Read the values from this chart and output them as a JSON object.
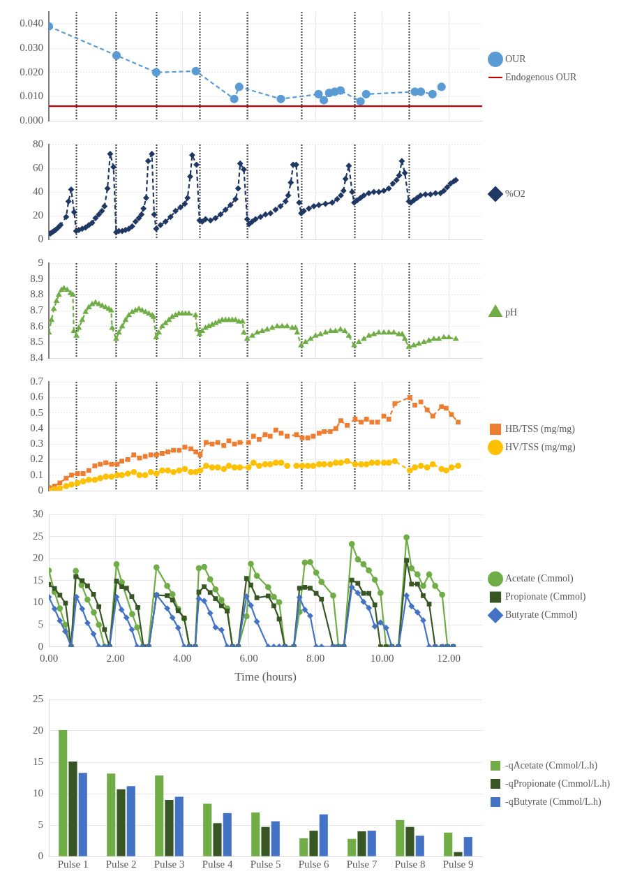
{
  "chart_data": [
    {
      "type": "line",
      "legend": "right",
      "grid": true,
      "tick_labels": "y",
      "line_style": "dashed",
      "marker": "circle",
      "xlim": [
        0,
        13
      ],
      "xticks": [
        0,
        2,
        4,
        6,
        8,
        10,
        12
      ],
      "ylim": [
        0,
        0.045
      ],
      "yticks": [
        {
          "value": 0,
          "label": "0.000"
        },
        {
          "value": 0.01,
          "label": "0.010"
        },
        {
          "value": 0.02,
          "label": "0.020"
        },
        {
          "value": 0.03,
          "label": "0.030"
        },
        {
          "value": 0.04,
          "label": "0.040"
        }
      ],
      "ref_lines": [
        {
          "axis": "x",
          "value": 0.82,
          "color": "#404040",
          "line_style": "dotted"
        },
        {
          "axis": "x",
          "value": 2.02,
          "color": "#404040",
          "line_style": "dotted"
        },
        {
          "axis": "x",
          "value": 3.22,
          "color": "#404040",
          "line_style": "dotted"
        },
        {
          "axis": "x",
          "value": 4.52,
          "color": "#404040",
          "line_style": "dotted"
        },
        {
          "axis": "x",
          "value": 5.95,
          "color": "#404040",
          "line_style": "dotted"
        },
        {
          "axis": "x",
          "value": 7.57,
          "color": "#404040",
          "line_style": "dotted"
        },
        {
          "axis": "x",
          "value": 9.16,
          "color": "#404040",
          "line_style": "dotted"
        },
        {
          "axis": "x",
          "value": 10.8,
          "color": "#404040",
          "line_style": "dotted"
        }
      ],
      "series": [
        {
          "name": "OUR",
          "color": "#5b9bd5",
          "x": [
            0,
            2.03,
            3.22,
            4.41,
            5.56,
            5.71,
            6.96,
            8.09,
            8.25,
            8.41,
            8.58,
            8.75,
            9.35,
            9.52,
            10.98,
            11.16,
            11.51,
            11.78
          ],
          "values": [
            0.039,
            0.027,
            0.02,
            0.0205,
            0.009,
            0.014,
            0.009,
            0.011,
            0.0085,
            0.0115,
            0.012,
            0.0125,
            0.008,
            0.011,
            0.012,
            0.012,
            0.011,
            0.014
          ]
        },
        {
          "name": "Endogenous OUR",
          "color": "#c00000",
          "marker": "none",
          "line_style": "solid",
          "x": [
            0,
            13
          ],
          "values": [
            0.006,
            0.006
          ]
        }
      ]
    },
    {
      "type": "line",
      "legend": "right",
      "grid": true,
      "tick_labels": "y",
      "line_style": "dashed",
      "marker": "diamond",
      "xlim": [
        0,
        13
      ],
      "xticks": [
        0,
        2,
        4,
        6,
        8,
        10,
        12
      ],
      "ylim": [
        0,
        80
      ],
      "yticks": [
        0,
        20,
        40,
        60,
        80
      ],
      "ref_lines": [
        {
          "axis": "x",
          "value": 0.82,
          "color": "#404040",
          "line_style": "dotted"
        },
        {
          "axis": "x",
          "value": 2.02,
          "color": "#404040",
          "line_style": "dotted"
        },
        {
          "axis": "x",
          "value": 3.22,
          "color": "#404040",
          "line_style": "dotted"
        },
        {
          "axis": "x",
          "value": 4.52,
          "color": "#404040",
          "line_style": "dotted"
        },
        {
          "axis": "x",
          "value": 5.95,
          "color": "#404040",
          "line_style": "dotted"
        },
        {
          "axis": "x",
          "value": 7.57,
          "color": "#404040",
          "line_style": "dotted"
        },
        {
          "axis": "x",
          "value": 9.16,
          "color": "#404040",
          "line_style": "dotted"
        },
        {
          "axis": "x",
          "value": 10.8,
          "color": "#404040",
          "line_style": "dotted"
        }
      ],
      "series": [
        {
          "name": "%O2",
          "color": "#203864",
          "x": [
            0,
            0.05,
            0.1,
            0.15,
            0.2,
            0.28,
            0.35,
            0.52,
            0.59,
            0.67,
            0.76,
            0.82,
            0.9,
            1.0,
            1.1,
            1.2,
            1.3,
            1.4,
            1.5,
            1.59,
            1.67,
            1.76,
            1.84,
            1.94,
            2.02,
            2.1,
            2.2,
            2.3,
            2.4,
            2.5,
            2.6,
            2.7,
            2.78,
            2.84,
            2.92,
            2.98,
            3.09,
            3.16,
            3.22,
            3.35,
            3.5,
            3.65,
            3.8,
            3.95,
            4.08,
            4.16,
            4.24,
            4.3,
            4.43,
            4.52,
            4.6,
            4.7,
            4.85,
            5.0,
            5.15,
            5.3,
            5.45,
            5.6,
            5.68,
            5.74,
            5.85,
            5.95,
            6.01,
            6.1,
            6.2,
            6.35,
            6.5,
            6.65,
            6.8,
            6.95,
            7.1,
            7.18,
            7.26,
            7.33,
            7.42,
            7.51,
            7.57,
            7.65,
            7.8,
            7.95,
            8.1,
            8.3,
            8.5,
            8.65,
            8.76,
            8.84,
            8.9,
            9.0,
            9.1,
            9.16,
            9.25,
            9.35,
            9.45,
            9.6,
            9.75,
            9.9,
            10.05,
            10.2,
            10.32,
            10.43,
            10.51,
            10.59,
            10.68,
            10.8,
            10.86,
            10.95,
            11.05,
            11.15,
            11.3,
            11.45,
            11.6,
            11.75,
            11.85,
            11.95,
            12.05,
            12.15,
            12.21
          ],
          "values": [
            5,
            5,
            6,
            7,
            8,
            10,
            12,
            19,
            32,
            42,
            23,
            7,
            8,
            9,
            10,
            12,
            14,
            18,
            21,
            24,
            28,
            43,
            72,
            61,
            6,
            7,
            7,
            8,
            9,
            11,
            15,
            18,
            21,
            26,
            35,
            66,
            72,
            21,
            9,
            12,
            15,
            19,
            24,
            27,
            30,
            35,
            53,
            71,
            63,
            16,
            15,
            17,
            16,
            18,
            21,
            25,
            29,
            34,
            43,
            64,
            59,
            17,
            13,
            15,
            17,
            19,
            21,
            22,
            25,
            28,
            32,
            37,
            48,
            63,
            63,
            31,
            22,
            24,
            26,
            28,
            29,
            30,
            31,
            34,
            37,
            41,
            51,
            62,
            40,
            31,
            33,
            35,
            37,
            39,
            40,
            40,
            41,
            43,
            47,
            50,
            54,
            66,
            56,
            32,
            31,
            33,
            35,
            37,
            38,
            38,
            39,
            39,
            41,
            44,
            47,
            49,
            50
          ]
        }
      ]
    },
    {
      "type": "line",
      "legend": "right",
      "grid": true,
      "tick_labels": "y",
      "line_style": "dashed",
      "marker": "triangle",
      "xlim": [
        0,
        13
      ],
      "xticks": [
        0,
        2,
        4,
        6,
        8,
        10,
        12
      ],
      "ylim": [
        8.4,
        9
      ],
      "yticks": [
        8.4,
        8.5,
        8.6,
        8.7,
        8.8,
        8.9,
        9
      ],
      "ref_lines": [
        {
          "axis": "x",
          "value": 0.82,
          "color": "#404040",
          "line_style": "dotted"
        },
        {
          "axis": "x",
          "value": 2.02,
          "color": "#404040",
          "line_style": "dotted"
        },
        {
          "axis": "x",
          "value": 3.22,
          "color": "#404040",
          "line_style": "dotted"
        },
        {
          "axis": "x",
          "value": 4.52,
          "color": "#404040",
          "line_style": "dotted"
        },
        {
          "axis": "x",
          "value": 5.95,
          "color": "#404040",
          "line_style": "dotted"
        },
        {
          "axis": "x",
          "value": 7.57,
          "color": "#404040",
          "line_style": "dotted"
        },
        {
          "axis": "x",
          "value": 9.16,
          "color": "#404040",
          "line_style": "dotted"
        },
        {
          "axis": "x",
          "value": 10.8,
          "color": "#404040",
          "line_style": "dotted"
        }
      ],
      "series": [
        {
          "name": "pH",
          "color": "#70ad47",
          "x": [
            0,
            0.08,
            0.15,
            0.23,
            0.3,
            0.38,
            0.45,
            0.55,
            0.65,
            0.72,
            0.75,
            0.83,
            0.9,
            1.0,
            1.1,
            1.2,
            1.3,
            1.4,
            1.5,
            1.6,
            1.7,
            1.8,
            1.87,
            1.9,
            2.02,
            2.1,
            2.2,
            2.3,
            2.4,
            2.5,
            2.6,
            2.7,
            2.8,
            2.9,
            3.0,
            3.1,
            3.14,
            3.22,
            3.3,
            3.4,
            3.5,
            3.6,
            3.7,
            3.8,
            3.9,
            4.0,
            4.1,
            4.2,
            4.4,
            4.45,
            4.52,
            4.6,
            4.7,
            4.8,
            4.9,
            5.0,
            5.1,
            5.2,
            5.3,
            5.4,
            5.5,
            5.6,
            5.7,
            5.81,
            5.85,
            5.95,
            6.1,
            6.25,
            6.4,
            6.55,
            6.7,
            6.85,
            7.0,
            7.15,
            7.3,
            7.4,
            7.45,
            7.57,
            7.7,
            7.85,
            8.0,
            8.15,
            8.3,
            8.45,
            8.6,
            8.75,
            8.88,
            9.0,
            9.16,
            9.3,
            9.45,
            9.6,
            9.75,
            9.9,
            10.05,
            10.2,
            10.35,
            10.5,
            10.6,
            10.68,
            10.8,
            10.95,
            11.1,
            11.25,
            11.4,
            11.55,
            11.7,
            11.85,
            12.0,
            12.21
          ],
          "values": [
            8.56,
            8.64,
            8.71,
            8.76,
            8.8,
            8.83,
            8.84,
            8.83,
            8.81,
            8.8,
            8.57,
            8.54,
            8.59,
            8.64,
            8.69,
            8.72,
            8.74,
            8.75,
            8.74,
            8.73,
            8.72,
            8.71,
            8.7,
            8.59,
            8.52,
            8.56,
            8.6,
            8.64,
            8.67,
            8.69,
            8.7,
            8.71,
            8.7,
            8.69,
            8.68,
            8.67,
            8.66,
            8.53,
            8.56,
            8.6,
            8.62,
            8.64,
            8.66,
            8.67,
            8.68,
            8.68,
            8.68,
            8.68,
            8.67,
            8.58,
            8.55,
            8.57,
            8.59,
            8.6,
            8.61,
            8.62,
            8.63,
            8.64,
            8.64,
            8.64,
            8.64,
            8.64,
            8.63,
            8.63,
            8.56,
            8.52,
            8.54,
            8.56,
            8.57,
            8.58,
            8.59,
            8.6,
            8.6,
            8.6,
            8.59,
            8.59,
            8.56,
            8.48,
            8.5,
            8.52,
            8.54,
            8.55,
            8.56,
            8.57,
            8.57,
            8.58,
            8.57,
            8.54,
            8.48,
            8.5,
            8.52,
            8.54,
            8.55,
            8.56,
            8.56,
            8.56,
            8.56,
            8.55,
            8.55,
            8.52,
            8.47,
            8.48,
            8.49,
            8.5,
            8.51,
            8.52,
            8.52,
            8.53,
            8.53,
            8.52
          ]
        }
      ]
    },
    {
      "type": "line",
      "legend": "right",
      "grid": true,
      "tick_labels": "y",
      "line_style": "dashed",
      "xlim": [
        0,
        13
      ],
      "xticks": [
        0,
        2,
        4,
        6,
        8,
        10,
        12
      ],
      "ylim": [
        0,
        0.7
      ],
      "yticks": [
        0,
        0.1,
        0.2,
        0.3,
        0.4,
        0.5,
        0.6,
        0.7
      ],
      "ref_lines": [
        {
          "axis": "x",
          "value": 0.82,
          "color": "#404040",
          "line_style": "dotted"
        },
        {
          "axis": "x",
          "value": 2.02,
          "color": "#404040",
          "line_style": "dotted"
        },
        {
          "axis": "x",
          "value": 3.22,
          "color": "#404040",
          "line_style": "dotted"
        },
        {
          "axis": "x",
          "value": 4.52,
          "color": "#404040",
          "line_style": "dotted"
        },
        {
          "axis": "x",
          "value": 5.95,
          "color": "#404040",
          "line_style": "dotted"
        },
        {
          "axis": "x",
          "value": 7.57,
          "color": "#404040",
          "line_style": "dotted"
        },
        {
          "axis": "x",
          "value": 9.16,
          "color": "#404040",
          "line_style": "dotted"
        },
        {
          "axis": "x",
          "value": 10.8,
          "color": "#404040",
          "line_style": "dotted"
        }
      ],
      "x": [
        0,
        0.17,
        0.33,
        0.52,
        0.68,
        0.86,
        1.03,
        1.2,
        1.38,
        1.54,
        1.71,
        1.88,
        2.05,
        2.19,
        2.37,
        2.55,
        2.72,
        2.89,
        3.06,
        3.23,
        3.4,
        3.57,
        3.74,
        3.91,
        4.08,
        4.26,
        4.41,
        4.54,
        4.72,
        4.9,
        5.07,
        5.25,
        5.4,
        5.57,
        5.73,
        5.99,
        6.14,
        6.31,
        6.49,
        6.64,
        6.81,
        6.97,
        7.15,
        7.43,
        7.6,
        7.77,
        7.93,
        8.11,
        8.26,
        8.44,
        8.61,
        8.76,
        8.95,
        9.19,
        9.37,
        9.53,
        9.69,
        9.86,
        10.05,
        10.2,
        10.38,
        10.83,
        10.98,
        11.16,
        11.35,
        11.52,
        11.78,
        11.92,
        12.08,
        12.28
      ],
      "series": [
        {
          "name": "HB/TSS (mg/mg)",
          "color": "#ed7d31",
          "marker": "square",
          "values": [
            0.02,
            0.03,
            0.05,
            0.08,
            0.1,
            0.11,
            0.11,
            0.13,
            0.16,
            0.17,
            0.18,
            0.17,
            0.17,
            0.19,
            0.2,
            0.23,
            0.21,
            0.22,
            0.23,
            0.23,
            0.24,
            0.25,
            0.26,
            0.26,
            0.28,
            0.27,
            0.25,
            0.23,
            0.31,
            0.3,
            0.31,
            0.29,
            0.32,
            0.3,
            0.31,
            0.31,
            0.35,
            0.33,
            0.36,
            0.35,
            0.39,
            0.37,
            0.35,
            0.36,
            0.34,
            0.34,
            0.35,
            0.37,
            0.38,
            0.38,
            0.4,
            0.45,
            0.42,
            0.46,
            0.44,
            0.46,
            0.44,
            0.44,
            0.48,
            0.46,
            0.56,
            0.6,
            0.55,
            0.57,
            0.52,
            0.48,
            0.54,
            0.53,
            0.49,
            0.44
          ]
        },
        {
          "name": "HV/TSS (mg/mg)",
          "color": "#ffc000",
          "marker": "circle",
          "values": [
            0,
            0.01,
            0.015,
            0.03,
            0.04,
            0.05,
            0.06,
            0.07,
            0.07,
            0.08,
            0.09,
            0.09,
            0.1,
            0.1,
            0.11,
            0.12,
            0.1,
            0.1,
            0.12,
            0.11,
            0.13,
            0.13,
            0.12,
            0.13,
            0.14,
            0.12,
            0.12,
            0.13,
            0.16,
            0.15,
            0.15,
            0.14,
            0.16,
            0.15,
            0.15,
            0.15,
            0.18,
            0.16,
            0.17,
            0.17,
            0.18,
            0.18,
            0.16,
            0.16,
            0.16,
            0.16,
            0.16,
            0.17,
            0.17,
            0.17,
            0.18,
            0.18,
            0.19,
            0.17,
            0.17,
            0.17,
            0.18,
            0.18,
            0.18,
            0.18,
            0.19,
            0.13,
            0.15,
            0.16,
            0.15,
            0.17,
            0.14,
            0.13,
            0.15,
            0.16
          ]
        }
      ]
    },
    {
      "type": "line",
      "legend": "right",
      "grid": true,
      "line_style": "solid",
      "xlabel": "Time (hours)",
      "xlim": [
        0,
        13
      ],
      "xticks": [
        {
          "value": 0,
          "label": "0.00"
        },
        {
          "value": 2,
          "label": "2.00"
        },
        {
          "value": 4,
          "label": "4.00"
        },
        {
          "value": 6,
          "label": "6.00"
        },
        {
          "value": 8,
          "label": "8.00"
        },
        {
          "value": 10,
          "label": "10.00"
        },
        {
          "value": 12,
          "label": "12.00"
        }
      ],
      "ylim": [
        0,
        30
      ],
      "yticks": [
        0,
        5,
        10,
        15,
        20,
        25,
        30
      ],
      "series": [
        {
          "name": "Acetate (Cmmol)",
          "color": "#70ad47",
          "marker": "circle",
          "x": [
            0,
            0.17,
            0.33,
            0.49,
            0.67,
            0.81,
            0.98,
            1.16,
            1.35,
            1.5,
            1.67,
            1.82,
            2.03,
            2.19,
            2.5,
            2.65,
            2.82,
            2.98,
            3.23,
            3.55,
            3.71,
            3.88,
            4.06,
            4.22,
            4.39,
            4.5,
            4.66,
            4.84,
            5.0,
            5.18,
            5.35,
            5.51,
            5.68,
            5.93,
            6.06,
            6.24,
            6.58,
            6.75,
            6.91,
            7.08,
            7.35,
            7.52,
            7.68,
            7.84,
            8.02,
            8.18,
            8.53,
            8.69,
            8.85,
            9.09,
            9.27,
            9.44,
            9.6,
            9.78,
            9.95,
            10.12,
            10.29,
            10.49,
            10.73,
            10.88,
            11.06,
            11.23,
            11.41,
            11.59,
            11.8,
            11.96,
            12.13
          ],
          "values": [
            17.3,
            12.4,
            8.7,
            5,
            0,
            17.2,
            14,
            10.7,
            7.8,
            5,
            0,
            0,
            18.7,
            14.6,
            7.4,
            4.4,
            0,
            0,
            18,
            13.8,
            11.9,
            8.6,
            6.4,
            0,
            0,
            17.8,
            18.1,
            15.3,
            13,
            10.6,
            8.7,
            0,
            0,
            6.9,
            18.8,
            16.1,
            13.5,
            11.3,
            10.1,
            0,
            0,
            7.9,
            19.1,
            19.2,
            16.8,
            14.7,
            11.6,
            0,
            0,
            23.3,
            19.8,
            18.7,
            17.3,
            15.2,
            12.2,
            0,
            0,
            0,
            24.8,
            17.8,
            16.4,
            13.8,
            16.4,
            13.8,
            11.8,
            0,
            0
          ]
        },
        {
          "name": "Propionate (Cmmol)",
          "color": "#375623",
          "marker": "square",
          "x": [
            0,
            0.17,
            0.33,
            0.5,
            0.67,
            0.81,
            1.0,
            1.16,
            1.34,
            1.5,
            1.67,
            1.82,
            2.03,
            2.19,
            2.33,
            2.49,
            2.67,
            2.84,
            3.0,
            3.23,
            3.55,
            3.71,
            3.88,
            4.06,
            4.22,
            4.39,
            4.5,
            4.66,
            4.84,
            5.0,
            5.18,
            5.35,
            5.51,
            5.68,
            5.93,
            6.06,
            6.24,
            6.58,
            6.75,
            6.91,
            7.08,
            7.35,
            7.52,
            7.68,
            7.84,
            8.02,
            8.18,
            8.53,
            8.69,
            8.85,
            9.09,
            9.27,
            9.44,
            9.6,
            9.78,
            9.95,
            10.12,
            10.29,
            10.49,
            10.73,
            10.88,
            11.06,
            11.23,
            11.41,
            11.59,
            11.8,
            11.96,
            12.13
          ],
          "values": [
            14.1,
            13.2,
            11.7,
            9.9,
            0,
            15.9,
            15,
            13.8,
            11.9,
            9.1,
            3.9,
            0,
            14.9,
            13.6,
            13.3,
            11.4,
            8.9,
            0,
            0,
            11.7,
            11.6,
            10.6,
            8.2,
            6.5,
            0,
            0,
            12.4,
            13.6,
            12.3,
            10.9,
            9.3,
            8.1,
            0,
            0,
            15.5,
            14,
            11.1,
            11.5,
            9.3,
            6.3,
            0,
            0,
            13.3,
            13.5,
            13.3,
            12.1,
            10.8,
            0,
            0,
            0,
            15.1,
            14.4,
            12.1,
            12.1,
            9.5,
            0,
            0,
            0,
            0,
            19.6,
            14.2,
            14.2,
            11.6,
            9.7,
            0,
            0,
            0,
            0
          ]
        },
        {
          "name": "Butyrate (Cmmol)",
          "color": "#4472c4",
          "marker": "diamond",
          "x": [
            0,
            0.17,
            0.33,
            0.49,
            0.67,
            0.83,
            1.0,
            1.16,
            1.34,
            1.5,
            1.67,
            1.82,
            2.03,
            2.18,
            2.33,
            2.49,
            2.65,
            2.82,
            3.0,
            3.23,
            3.55,
            3.71,
            3.88,
            4.06,
            4.22,
            4.39,
            4.5,
            4.66,
            4.84,
            5.0,
            5.18,
            5.35,
            5.51,
            5.68,
            5.93,
            6.06,
            6.24,
            6.58,
            6.75,
            6.91,
            7.08,
            7.35,
            7.52,
            7.68,
            7.84,
            8.02,
            8.18,
            8.53,
            8.69,
            8.85,
            9.09,
            9.27,
            9.44,
            9.6,
            9.78,
            9.95,
            10.12,
            10.29,
            10.49,
            10.73,
            10.88,
            11.06,
            11.23,
            11.41,
            11.59,
            11.8,
            11.96,
            12.13
          ],
          "values": [
            11.3,
            8.6,
            5.9,
            3.5,
            0,
            11.3,
            8.6,
            5.4,
            2.9,
            0,
            0,
            0,
            11.3,
            8.4,
            6.6,
            3.9,
            0,
            0,
            0,
            11.8,
            8.7,
            6.6,
            4.3,
            0,
            0,
            0,
            10.9,
            10.4,
            7.6,
            4.4,
            3.8,
            0,
            0,
            0,
            11.4,
            9.4,
            5.7,
            0,
            0,
            0,
            0,
            0,
            11.2,
            8.4,
            7,
            0,
            0,
            0,
            0,
            0,
            13.5,
            12.2,
            10.2,
            8.8,
            4.6,
            5.5,
            4.3,
            0,
            0,
            11.6,
            9.2,
            7.8,
            6,
            0,
            0,
            0,
            0,
            0
          ]
        }
      ]
    },
    {
      "type": "bar",
      "legend": "right",
      "grid": "y",
      "categories": [
        "Pulse 1",
        "Pulse 2",
        "Pulse 3",
        "Pulse 4",
        "Pulse 5",
        "Pulse 6",
        "Pulse 7",
        "Pulse 8",
        "Pulse 9"
      ],
      "ylim": [
        0,
        25
      ],
      "yticks": [
        0,
        5,
        10,
        15,
        20,
        25
      ],
      "series": [
        {
          "name": "-qAcetate (Cmmol/L.h)",
          "color": "#70ad47",
          "values": [
            20.1,
            13.2,
            12.9,
            8.4,
            7.0,
            2.9,
            2.8,
            5.8,
            3.8
          ]
        },
        {
          "name": "-qPropionate (Cmmol/L.h)",
          "color": "#375623",
          "values": [
            15.1,
            10.7,
            9.0,
            5.3,
            4.7,
            4.1,
            4.0,
            4.7,
            0.7
          ]
        },
        {
          "name": "-qButyrate (Cmmol/L.h)",
          "color": "#4472c4",
          "values": [
            13.3,
            11.2,
            9.5,
            6.9,
            5.6,
            6.7,
            4.1,
            3.3,
            3.1
          ]
        }
      ]
    }
  ]
}
